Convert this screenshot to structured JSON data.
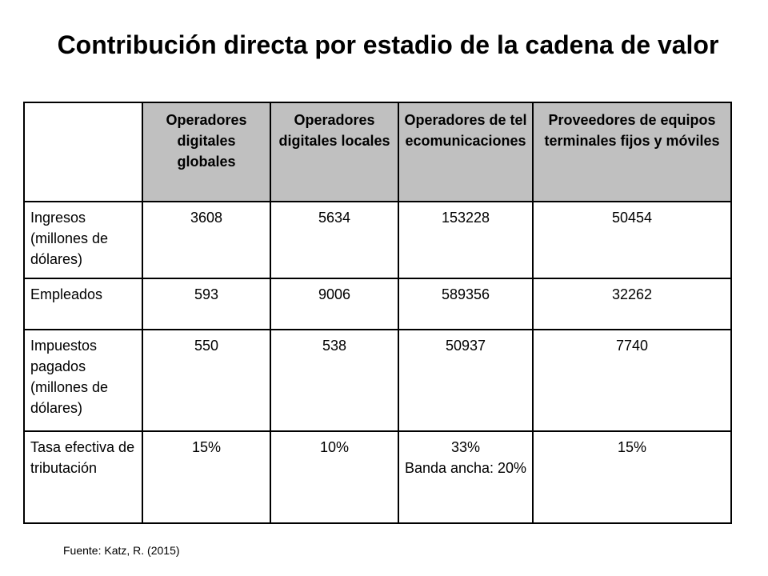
{
  "title": "Contribución directa por estadio de la cadena de valor",
  "table": {
    "columns": [
      "",
      "Operadores digitales globales",
      "Operadores digitales locales",
      "Operadores de telecomunicaciones",
      "Proveedores de equipos terminales fijos y móviles"
    ],
    "rows": [
      {
        "label": "Ingresos (millones de dólares)",
        "values": [
          "3608",
          "5634",
          "153228",
          "50454"
        ]
      },
      {
        "label": "Empleados",
        "values": [
          "593",
          "9006",
          "589356",
          "32262"
        ]
      },
      {
        "label": "Impuestos pagados (millones de dólares)",
        "values": [
          "550",
          "538",
          "50937",
          "7740"
        ]
      },
      {
        "label": "Tasa efectiva de tributación",
        "values": [
          "15%",
          "10%",
          "33%",
          "15%"
        ],
        "notes": [
          "",
          "",
          "Banda ancha: 20%",
          ""
        ]
      }
    ]
  },
  "source": "Fuente: Katz, R. (2015)"
}
